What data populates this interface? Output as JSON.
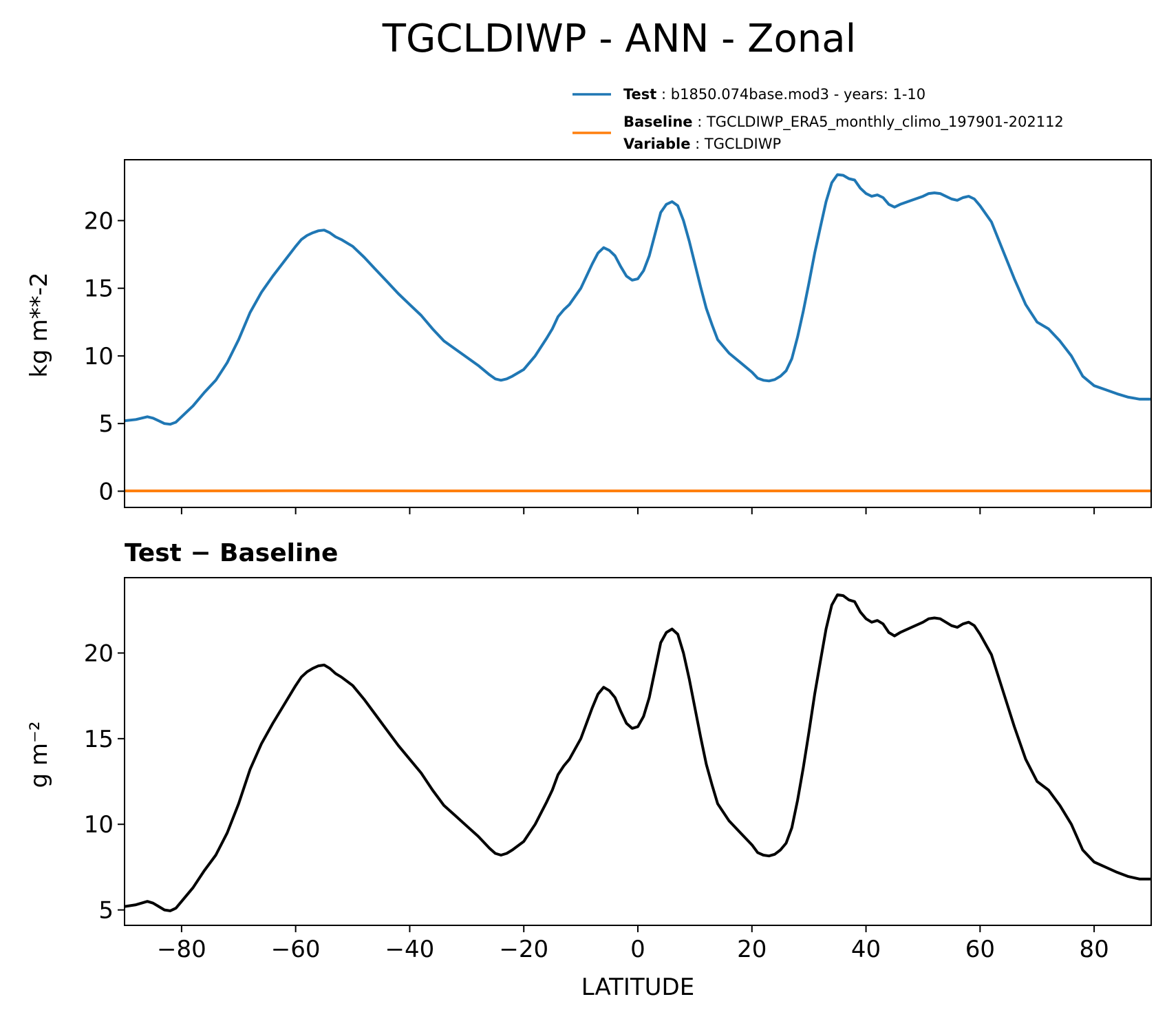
{
  "figure": {
    "title": "TGCLDIWP - ANN - Zonal",
    "subtitle": "Test − Baseline",
    "xlabel": "LATITUDE",
    "colors": {
      "test": "#1f77b4",
      "baseline": "#ff7f0e",
      "diff": "#000000"
    }
  },
  "legend": {
    "test": {
      "key": "Test",
      "sep": " : ",
      "text": "b1850.074base.mod3 - years: 1-10"
    },
    "baseline": {
      "key": "Baseline",
      "sep": " : ",
      "text": "TGCLDIWP_ERA5_monthly_climo_197901-202112"
    },
    "variable": {
      "key": "Variable",
      "sep": " : ",
      "text": "TGCLDIWP"
    }
  },
  "chart_data": [
    {
      "type": "line",
      "panel": "top",
      "ylabel": "kg m**-2",
      "xlim": [
        -90,
        90
      ],
      "ylim": [
        -1.2,
        24.5
      ],
      "xticks": [
        -80,
        -60,
        -40,
        -20,
        0,
        20,
        40,
        60,
        80
      ],
      "yticks": [
        0,
        5,
        10,
        15,
        20
      ],
      "xtick_labels_visible": false,
      "series": [
        {
          "name": "Test",
          "color": "#1f77b4",
          "x": [
            -90,
            -88,
            -86,
            -85,
            -84,
            -83,
            -82,
            -81,
            -80,
            -78,
            -76,
            -74,
            -72,
            -70,
            -68,
            -66,
            -64,
            -62,
            -60,
            -59,
            -58,
            -57,
            -56,
            -55,
            -54,
            -53,
            -52,
            -50,
            -48,
            -46,
            -44,
            -42,
            -40,
            -38,
            -36,
            -34,
            -32,
            -30,
            -28,
            -26,
            -25,
            -24,
            -23,
            -22,
            -20,
            -18,
            -16,
            -15,
            -14,
            -13,
            -12,
            -10,
            -8,
            -7,
            -6,
            -5,
            -4,
            -3,
            -2,
            -1,
            0,
            1,
            2,
            3,
            4,
            5,
            6,
            7,
            8,
            9,
            10,
            11,
            12,
            13,
            14,
            16,
            18,
            20,
            21,
            22,
            23,
            24,
            25,
            26,
            27,
            28,
            29,
            30,
            31,
            32,
            33,
            34,
            35,
            36,
            37,
            38,
            39,
            40,
            41,
            42,
            43,
            44,
            45,
            46,
            48,
            50,
            51,
            52,
            53,
            54,
            55,
            56,
            57,
            58,
            59,
            60,
            62,
            64,
            66,
            68,
            70,
            72,
            74,
            76,
            78,
            80,
            82,
            84,
            86,
            88,
            90
          ],
          "y": [
            5.2,
            5.3,
            5.5,
            5.4,
            5.2,
            5.0,
            4.95,
            5.1,
            5.5,
            6.3,
            7.3,
            8.2,
            9.5,
            11.2,
            13.2,
            14.7,
            15.9,
            17.0,
            18.1,
            18.6,
            18.9,
            19.1,
            19.25,
            19.3,
            19.1,
            18.8,
            18.6,
            18.1,
            17.3,
            16.4,
            15.5,
            14.6,
            13.8,
            13.0,
            12.0,
            11.1,
            10.5,
            9.9,
            9.3,
            8.6,
            8.3,
            8.2,
            8.3,
            8.5,
            9.0,
            10.0,
            11.3,
            12.0,
            12.9,
            13.4,
            13.8,
            15.0,
            16.8,
            17.6,
            18.0,
            17.8,
            17.4,
            16.6,
            15.9,
            15.6,
            15.7,
            16.3,
            17.4,
            19.0,
            20.6,
            21.2,
            21.4,
            21.1,
            20.0,
            18.5,
            16.8,
            15.1,
            13.5,
            12.3,
            11.2,
            10.2,
            9.5,
            8.8,
            8.35,
            8.2,
            8.15,
            8.25,
            8.5,
            8.9,
            9.8,
            11.4,
            13.3,
            15.4,
            17.6,
            19.5,
            21.4,
            22.8,
            23.4,
            23.35,
            23.1,
            23.0,
            22.4,
            22.0,
            21.8,
            21.9,
            21.7,
            21.2,
            21.0,
            21.2,
            21.5,
            21.8,
            22.0,
            22.05,
            22.0,
            21.8,
            21.6,
            21.5,
            21.7,
            21.8,
            21.6,
            21.1,
            19.9,
            17.8,
            15.7,
            13.8,
            12.5,
            12.0,
            11.1,
            10.0,
            8.5,
            7.8,
            7.5,
            7.2,
            6.95,
            6.8,
            6.8
          ]
        },
        {
          "name": "Baseline",
          "color": "#ff7f0e",
          "x": [
            -90,
            -60,
            -30,
            0,
            30,
            60,
            90
          ],
          "y": [
            0.02,
            0.03,
            0.02,
            0.02,
            0.02,
            0.02,
            0.02
          ]
        }
      ]
    },
    {
      "type": "line",
      "panel": "bottom",
      "title": "Test − Baseline",
      "xlabel": "LATITUDE",
      "ylabel": "g m⁻²",
      "xlim": [
        -90,
        90
      ],
      "ylim": [
        4.1,
        24.4
      ],
      "xticks": [
        -80,
        -60,
        -40,
        -20,
        0,
        20,
        40,
        60,
        80
      ],
      "xtick_labels": [
        "−80",
        "−60",
        "−40",
        "−20",
        "0",
        "20",
        "40",
        "60",
        "80"
      ],
      "yticks": [
        5,
        10,
        15,
        20
      ],
      "series": [
        {
          "name": "Test − Baseline",
          "color": "#000000",
          "x": [
            -90,
            -88,
            -86,
            -85,
            -84,
            -83,
            -82,
            -81,
            -80,
            -78,
            -76,
            -74,
            -72,
            -70,
            -68,
            -66,
            -64,
            -62,
            -60,
            -59,
            -58,
            -57,
            -56,
            -55,
            -54,
            -53,
            -52,
            -50,
            -48,
            -46,
            -44,
            -42,
            -40,
            -38,
            -36,
            -34,
            -32,
            -30,
            -28,
            -26,
            -25,
            -24,
            -23,
            -22,
            -20,
            -18,
            -16,
            -15,
            -14,
            -13,
            -12,
            -10,
            -8,
            -7,
            -6,
            -5,
            -4,
            -3,
            -2,
            -1,
            0,
            1,
            2,
            3,
            4,
            5,
            6,
            7,
            8,
            9,
            10,
            11,
            12,
            13,
            14,
            16,
            18,
            20,
            21,
            22,
            23,
            24,
            25,
            26,
            27,
            28,
            29,
            30,
            31,
            32,
            33,
            34,
            35,
            36,
            37,
            38,
            39,
            40,
            41,
            42,
            43,
            44,
            45,
            46,
            48,
            50,
            51,
            52,
            53,
            54,
            55,
            56,
            57,
            58,
            59,
            60,
            62,
            64,
            66,
            68,
            70,
            72,
            74,
            76,
            78,
            80,
            82,
            84,
            86,
            88,
            90
          ],
          "y": [
            5.2,
            5.3,
            5.5,
            5.4,
            5.2,
            5.0,
            4.95,
            5.1,
            5.5,
            6.3,
            7.3,
            8.2,
            9.5,
            11.2,
            13.2,
            14.7,
            15.9,
            17.0,
            18.1,
            18.6,
            18.9,
            19.1,
            19.25,
            19.3,
            19.1,
            18.8,
            18.6,
            18.1,
            17.3,
            16.4,
            15.5,
            14.6,
            13.8,
            13.0,
            12.0,
            11.1,
            10.5,
            9.9,
            9.3,
            8.6,
            8.3,
            8.2,
            8.3,
            8.5,
            9.0,
            10.0,
            11.3,
            12.0,
            12.9,
            13.4,
            13.8,
            15.0,
            16.8,
            17.6,
            18.0,
            17.8,
            17.4,
            16.6,
            15.9,
            15.6,
            15.7,
            16.3,
            17.4,
            19.0,
            20.6,
            21.2,
            21.4,
            21.1,
            20.0,
            18.5,
            16.8,
            15.1,
            13.5,
            12.3,
            11.2,
            10.2,
            9.5,
            8.8,
            8.35,
            8.2,
            8.15,
            8.25,
            8.5,
            8.9,
            9.8,
            11.4,
            13.3,
            15.4,
            17.6,
            19.5,
            21.4,
            22.8,
            23.4,
            23.35,
            23.1,
            23.0,
            22.4,
            22.0,
            21.8,
            21.9,
            21.7,
            21.2,
            21.0,
            21.2,
            21.5,
            21.8,
            22.0,
            22.05,
            22.0,
            21.8,
            21.6,
            21.5,
            21.7,
            21.8,
            21.6,
            21.1,
            19.9,
            17.8,
            15.7,
            13.8,
            12.5,
            12.0,
            11.1,
            10.0,
            8.5,
            7.8,
            7.5,
            7.2,
            6.95,
            6.8,
            6.8
          ]
        }
      ]
    }
  ]
}
